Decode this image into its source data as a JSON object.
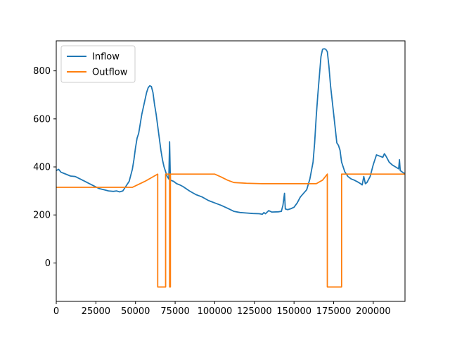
{
  "chart_data": {
    "type": "line",
    "title": "",
    "xlabel": "",
    "ylabel": "",
    "xlim": [
      0,
      220000
    ],
    "ylim": [
      -160,
      925
    ],
    "x_ticks": [
      {
        "value": 0,
        "label": "0"
      },
      {
        "value": 25000,
        "label": "25000"
      },
      {
        "value": 50000,
        "label": "50000"
      },
      {
        "value": 75000,
        "label": "75000"
      },
      {
        "value": 100000,
        "label": "100000"
      },
      {
        "value": 125000,
        "label": "125000"
      },
      {
        "value": 150000,
        "label": "150000"
      },
      {
        "value": 175000,
        "label": "175000"
      },
      {
        "value": 200000,
        "label": "200000"
      }
    ],
    "y_ticks": [
      {
        "value": 0,
        "label": "0"
      },
      {
        "value": 200,
        "label": "200"
      },
      {
        "value": 400,
        "label": "400"
      },
      {
        "value": 600,
        "label": "600"
      },
      {
        "value": 800,
        "label": "800"
      }
    ],
    "grid": false,
    "legend": {
      "position": "upper-left"
    },
    "series": [
      {
        "name": "Inflow",
        "color": "#1f77b4",
        "points": [
          [
            0,
            385
          ],
          [
            1500,
            390
          ],
          [
            3000,
            378
          ],
          [
            6000,
            370
          ],
          [
            9000,
            362
          ],
          [
            12000,
            360
          ],
          [
            15000,
            350
          ],
          [
            18000,
            340
          ],
          [
            21000,
            330
          ],
          [
            24000,
            320
          ],
          [
            27000,
            310
          ],
          [
            30000,
            305
          ],
          [
            33000,
            300
          ],
          [
            36000,
            298
          ],
          [
            38000,
            300
          ],
          [
            40000,
            296
          ],
          [
            42000,
            300
          ],
          [
            44000,
            320
          ],
          [
            46000,
            340
          ],
          [
            48000,
            390
          ],
          [
            49000,
            430
          ],
          [
            50000,
            480
          ],
          [
            51000,
            520
          ],
          [
            52000,
            540
          ],
          [
            53000,
            580
          ],
          [
            54000,
            620
          ],
          [
            55000,
            650
          ],
          [
            56000,
            680
          ],
          [
            57000,
            710
          ],
          [
            58000,
            730
          ],
          [
            59000,
            738
          ],
          [
            60000,
            735
          ],
          [
            61000,
            710
          ],
          [
            62000,
            660
          ],
          [
            63000,
            620
          ],
          [
            64000,
            570
          ],
          [
            65000,
            520
          ],
          [
            66000,
            470
          ],
          [
            67000,
            430
          ],
          [
            68000,
            400
          ],
          [
            69000,
            380
          ],
          [
            70000,
            360
          ],
          [
            71000,
            350
          ],
          [
            71500,
            505
          ],
          [
            72000,
            345
          ],
          [
            74000,
            340
          ],
          [
            76000,
            330
          ],
          [
            78000,
            325
          ],
          [
            80000,
            318
          ],
          [
            84000,
            300
          ],
          [
            88000,
            285
          ],
          [
            92000,
            275
          ],
          [
            96000,
            260
          ],
          [
            100000,
            250
          ],
          [
            104000,
            240
          ],
          [
            108000,
            228
          ],
          [
            112000,
            215
          ],
          [
            116000,
            210
          ],
          [
            120000,
            208
          ],
          [
            124000,
            206
          ],
          [
            128000,
            205
          ],
          [
            130000,
            203
          ],
          [
            131000,
            210
          ],
          [
            132000,
            205
          ],
          [
            134000,
            218
          ],
          [
            136000,
            212
          ],
          [
            140000,
            213
          ],
          [
            142000,
            215
          ],
          [
            143000,
            240
          ],
          [
            144000,
            290
          ],
          [
            144500,
            225
          ],
          [
            146000,
            222
          ],
          [
            148000,
            226
          ],
          [
            150000,
            232
          ],
          [
            152000,
            250
          ],
          [
            154000,
            275
          ],
          [
            156000,
            290
          ],
          [
            158000,
            305
          ],
          [
            160000,
            350
          ],
          [
            162000,
            420
          ],
          [
            163000,
            500
          ],
          [
            164000,
            610
          ],
          [
            165000,
            700
          ],
          [
            166000,
            780
          ],
          [
            167000,
            860
          ],
          [
            168000,
            890
          ],
          [
            169000,
            892
          ],
          [
            170000,
            890
          ],
          [
            171000,
            880
          ],
          [
            172000,
            820
          ],
          [
            173000,
            740
          ],
          [
            174000,
            680
          ],
          [
            175000,
            620
          ],
          [
            176000,
            560
          ],
          [
            177000,
            500
          ],
          [
            178000,
            490
          ],
          [
            179000,
            470
          ],
          [
            180000,
            420
          ],
          [
            182000,
            380
          ],
          [
            184000,
            360
          ],
          [
            186000,
            350
          ],
          [
            188000,
            345
          ],
          [
            190000,
            338
          ],
          [
            192000,
            330
          ],
          [
            193000,
            325
          ],
          [
            194000,
            360
          ],
          [
            195000,
            330
          ],
          [
            196000,
            335
          ],
          [
            198000,
            360
          ],
          [
            200000,
            410
          ],
          [
            202000,
            450
          ],
          [
            204000,
            445
          ],
          [
            206000,
            440
          ],
          [
            207000,
            455
          ],
          [
            208000,
            445
          ],
          [
            210000,
            420
          ],
          [
            212000,
            408
          ],
          [
            214000,
            400
          ],
          [
            216000,
            392
          ],
          [
            216500,
            430
          ],
          [
            217000,
            385
          ],
          [
            219000,
            375
          ],
          [
            220000,
            372
          ]
        ]
      },
      {
        "name": "Outflow",
        "color": "#ff7f0e",
        "points": [
          [
            0,
            315
          ],
          [
            48000,
            315
          ],
          [
            56000,
            340
          ],
          [
            60000,
            355
          ],
          [
            64000,
            370
          ],
          [
            64000,
            -100
          ],
          [
            69000,
            -100
          ],
          [
            69000,
            370
          ],
          [
            71500,
            370
          ],
          [
            71500,
            -100
          ],
          [
            72000,
            -100
          ],
          [
            72000,
            370
          ],
          [
            100000,
            370
          ],
          [
            104000,
            358
          ],
          [
            108000,
            345
          ],
          [
            112000,
            335
          ],
          [
            120000,
            332
          ],
          [
            130000,
            330
          ],
          [
            164000,
            330
          ],
          [
            168000,
            345
          ],
          [
            171000,
            370
          ],
          [
            171000,
            -100
          ],
          [
            180000,
            -100
          ],
          [
            180000,
            370
          ],
          [
            220000,
            370
          ]
        ]
      }
    ]
  }
}
